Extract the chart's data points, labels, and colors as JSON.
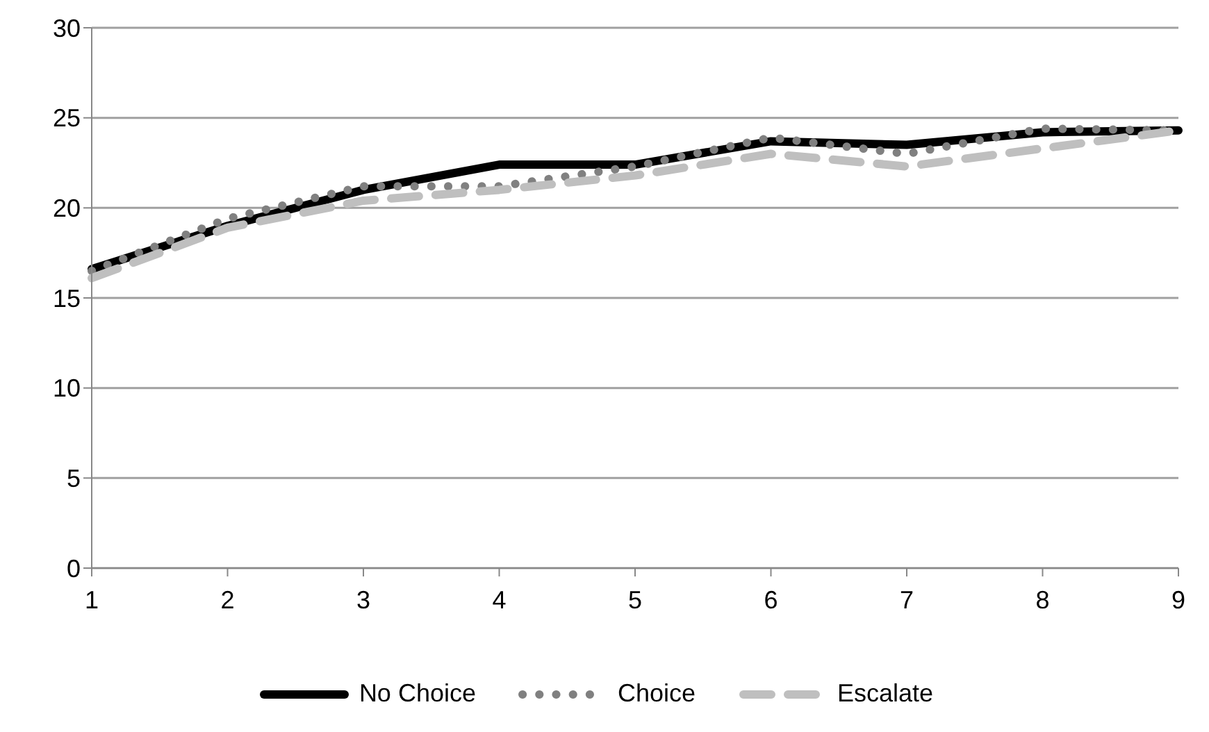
{
  "chart_data": {
    "type": "line",
    "categories": [
      "1",
      "2",
      "3",
      "4",
      "5",
      "6",
      "7",
      "8",
      "9"
    ],
    "series": [
      {
        "name": "No Choice",
        "color": "#000000",
        "line_style": "solid",
        "values": [
          16.6,
          19.0,
          21.0,
          22.4,
          22.4,
          23.7,
          23.5,
          24.2,
          24.3
        ]
      },
      {
        "name": "Choice",
        "color": "#808080",
        "line_style": "dotted",
        "values": [
          16.5,
          19.4,
          21.2,
          21.2,
          22.3,
          23.9,
          23.0,
          24.4,
          24.3
        ]
      },
      {
        "name": "Escalate",
        "color": "#bfbfbf",
        "line_style": "dashed",
        "values": [
          16.1,
          18.9,
          20.4,
          21.0,
          21.8,
          23.0,
          22.3,
          23.3,
          24.3
        ]
      }
    ],
    "ylim": [
      0,
      30
    ],
    "yticks": [
      0,
      5,
      10,
      15,
      20,
      25,
      30
    ],
    "grid": "y",
    "legend": "bottom",
    "marker": "none"
  }
}
